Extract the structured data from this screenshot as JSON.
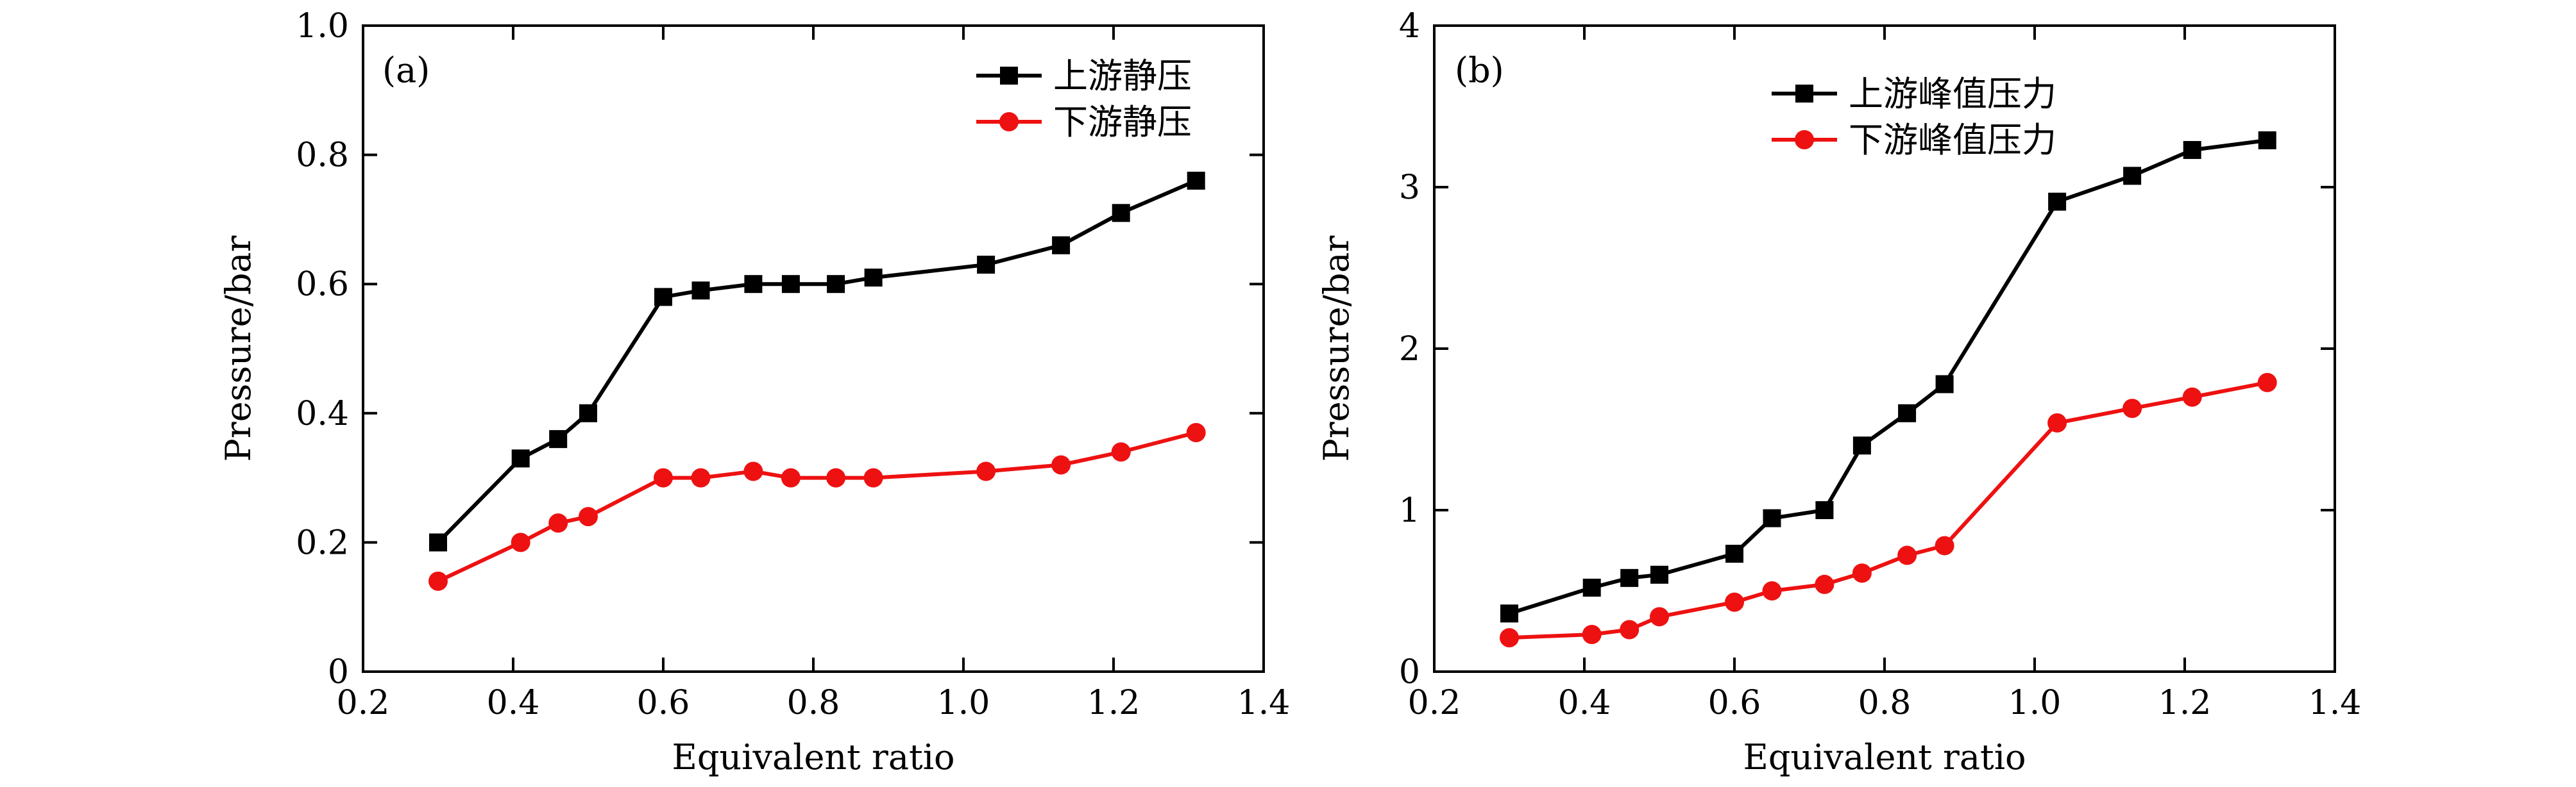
{
  "chart_data": [
    {
      "type": "line",
      "panel_label": "(a)",
      "xlabel": "Equivalent ratio",
      "ylabel": "Pressure/bar",
      "xlim": [
        0.2,
        1.4
      ],
      "ylim": [
        0,
        1.0
      ],
      "xticks": [
        "0.2",
        "0.4",
        "0.6",
        "0.8",
        "1.0",
        "1.2",
        "1.4"
      ],
      "yticks": [
        "0",
        "0.2",
        "0.4",
        "0.6",
        "0.8",
        "1.0"
      ],
      "grid": false,
      "legend_position": "top-right",
      "x": [
        0.3,
        0.41,
        0.46,
        0.5,
        0.6,
        0.65,
        0.72,
        0.77,
        0.83,
        0.88,
        1.03,
        1.13,
        1.21,
        1.31
      ],
      "series": [
        {
          "name": "上游静压",
          "color": "#000000",
          "marker": "square",
          "values": [
            0.2,
            0.33,
            0.36,
            0.4,
            0.58,
            0.59,
            0.6,
            0.6,
            0.6,
            0.61,
            0.63,
            0.66,
            0.71,
            0.76
          ]
        },
        {
          "name": "下游静压",
          "color": "#ee1111",
          "marker": "circle",
          "values": [
            0.14,
            0.2,
            0.23,
            0.24,
            0.3,
            0.3,
            0.31,
            0.3,
            0.3,
            0.3,
            0.31,
            0.32,
            0.34,
            0.37
          ]
        }
      ]
    },
    {
      "type": "line",
      "panel_label": "(b)",
      "xlabel": "Equivalent ratio",
      "ylabel": "Pressure/bar",
      "xlim": [
        0.2,
        1.4
      ],
      "ylim": [
        0,
        4
      ],
      "xticks": [
        "0.2",
        "0.4",
        "0.6",
        "0.8",
        "1.0",
        "1.2",
        "1.4"
      ],
      "yticks": [
        "0",
        "1",
        "2",
        "3",
        "4"
      ],
      "grid": false,
      "legend_position": "top-center",
      "x": [
        0.3,
        0.41,
        0.46,
        0.5,
        0.6,
        0.65,
        0.72,
        0.77,
        0.83,
        0.88,
        1.03,
        1.13,
        1.21,
        1.31
      ],
      "series": [
        {
          "name": "上游峰值压力",
          "color": "#000000",
          "marker": "square",
          "values": [
            0.36,
            0.52,
            0.58,
            0.6,
            0.73,
            0.95,
            1.0,
            1.4,
            1.6,
            1.78,
            2.91,
            3.07,
            3.23,
            3.29
          ]
        },
        {
          "name": "下游峰值压力",
          "color": "#ee1111",
          "marker": "circle",
          "values": [
            0.21,
            0.23,
            0.26,
            0.34,
            0.43,
            0.5,
            0.54,
            0.61,
            0.72,
            0.78,
            1.54,
            1.63,
            1.7,
            1.79
          ]
        }
      ]
    }
  ]
}
